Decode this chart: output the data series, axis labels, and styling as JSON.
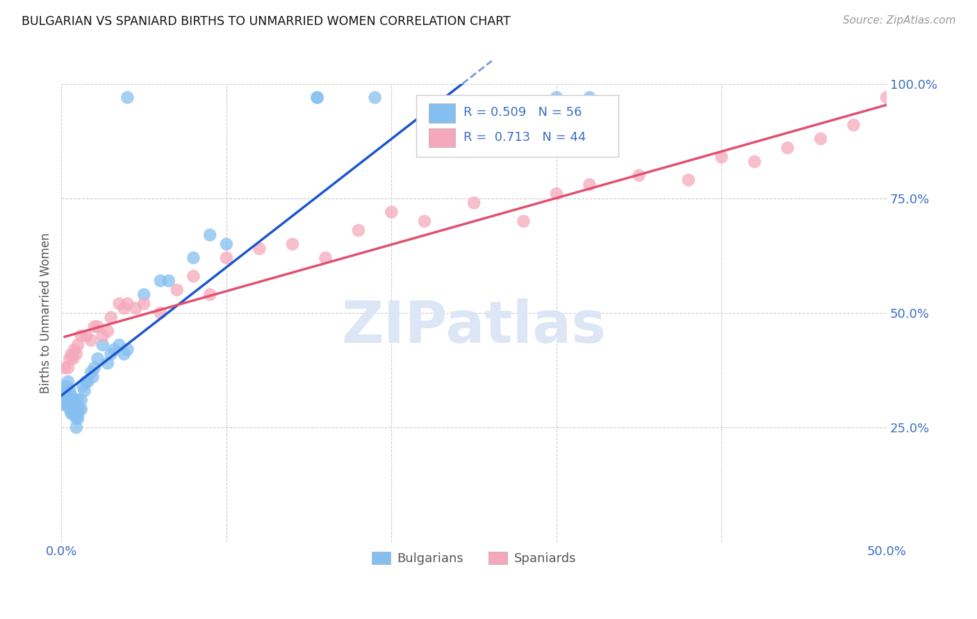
{
  "title": "BULGARIAN VS SPANIARD BIRTHS TO UNMARRIED WOMEN CORRELATION CHART",
  "source": "Source: ZipAtlas.com",
  "ylabel": "Births to Unmarried Women",
  "xlim": [
    0.0,
    0.5
  ],
  "ylim": [
    0.0,
    1.0
  ],
  "xtick_vals": [
    0.0,
    0.1,
    0.2,
    0.3,
    0.4,
    0.5
  ],
  "xtick_labels": [
    "0.0%",
    "",
    "",
    "",
    "",
    "50.0%"
  ],
  "ytick_vals": [
    0.0,
    0.25,
    0.5,
    0.75,
    1.0
  ],
  "ytick_labels_right": [
    "",
    "25.0%",
    "50.0%",
    "75.0%",
    "100.0%"
  ],
  "bulgarian_color": "#85bfef",
  "spaniard_color": "#f5a8bc",
  "bulgarian_line_color": "#1a56cc",
  "spaniard_line_color": "#e05070",
  "R_bulgarian": 0.509,
  "N_bulgarian": 56,
  "R_spaniard": 0.713,
  "N_spaniard": 44,
  "watermark": "ZIPatlas",
  "background_color": "#ffffff",
  "bg_x": [
    0.001,
    0.002,
    0.002,
    0.003,
    0.003,
    0.003,
    0.004,
    0.004,
    0.004,
    0.005,
    0.005,
    0.005,
    0.006,
    0.006,
    0.006,
    0.007,
    0.007,
    0.007,
    0.008,
    0.008,
    0.008,
    0.009,
    0.009,
    0.01,
    0.01,
    0.01,
    0.011,
    0.012,
    0.012,
    0.013,
    0.014,
    0.015,
    0.016,
    0.018,
    0.019,
    0.02,
    0.022,
    0.025,
    0.028,
    0.03,
    0.032,
    0.035,
    0.038,
    0.04,
    0.05,
    0.06,
    0.065,
    0.08,
    0.09,
    0.1,
    0.04,
    0.155,
    0.155,
    0.3,
    0.32,
    0.19
  ],
  "bg_y": [
    0.3,
    0.31,
    0.33,
    0.32,
    0.3,
    0.34,
    0.3,
    0.31,
    0.35,
    0.29,
    0.3,
    0.33,
    0.28,
    0.3,
    0.32,
    0.28,
    0.31,
    0.29,
    0.28,
    0.29,
    0.31,
    0.25,
    0.27,
    0.27,
    0.28,
    0.31,
    0.29,
    0.29,
    0.31,
    0.34,
    0.33,
    0.35,
    0.35,
    0.37,
    0.36,
    0.38,
    0.4,
    0.43,
    0.39,
    0.41,
    0.42,
    0.43,
    0.41,
    0.42,
    0.54,
    0.57,
    0.57,
    0.62,
    0.67,
    0.65,
    0.97,
    0.97,
    0.97,
    0.97,
    0.97,
    0.97
  ],
  "sp_x": [
    0.002,
    0.004,
    0.005,
    0.006,
    0.007,
    0.008,
    0.009,
    0.01,
    0.012,
    0.015,
    0.018,
    0.02,
    0.022,
    0.025,
    0.028,
    0.03,
    0.035,
    0.038,
    0.04,
    0.045,
    0.05,
    0.06,
    0.07,
    0.08,
    0.09,
    0.1,
    0.12,
    0.14,
    0.16,
    0.18,
    0.2,
    0.22,
    0.25,
    0.28,
    0.3,
    0.32,
    0.35,
    0.38,
    0.4,
    0.42,
    0.44,
    0.46,
    0.48,
    0.5
  ],
  "sp_y": [
    0.38,
    0.38,
    0.4,
    0.41,
    0.4,
    0.42,
    0.41,
    0.43,
    0.45,
    0.45,
    0.44,
    0.47,
    0.47,
    0.45,
    0.46,
    0.49,
    0.52,
    0.51,
    0.52,
    0.51,
    0.52,
    0.5,
    0.55,
    0.58,
    0.54,
    0.62,
    0.64,
    0.65,
    0.62,
    0.68,
    0.72,
    0.7,
    0.74,
    0.7,
    0.76,
    0.78,
    0.8,
    0.79,
    0.84,
    0.83,
    0.86,
    0.88,
    0.91,
    0.97
  ]
}
